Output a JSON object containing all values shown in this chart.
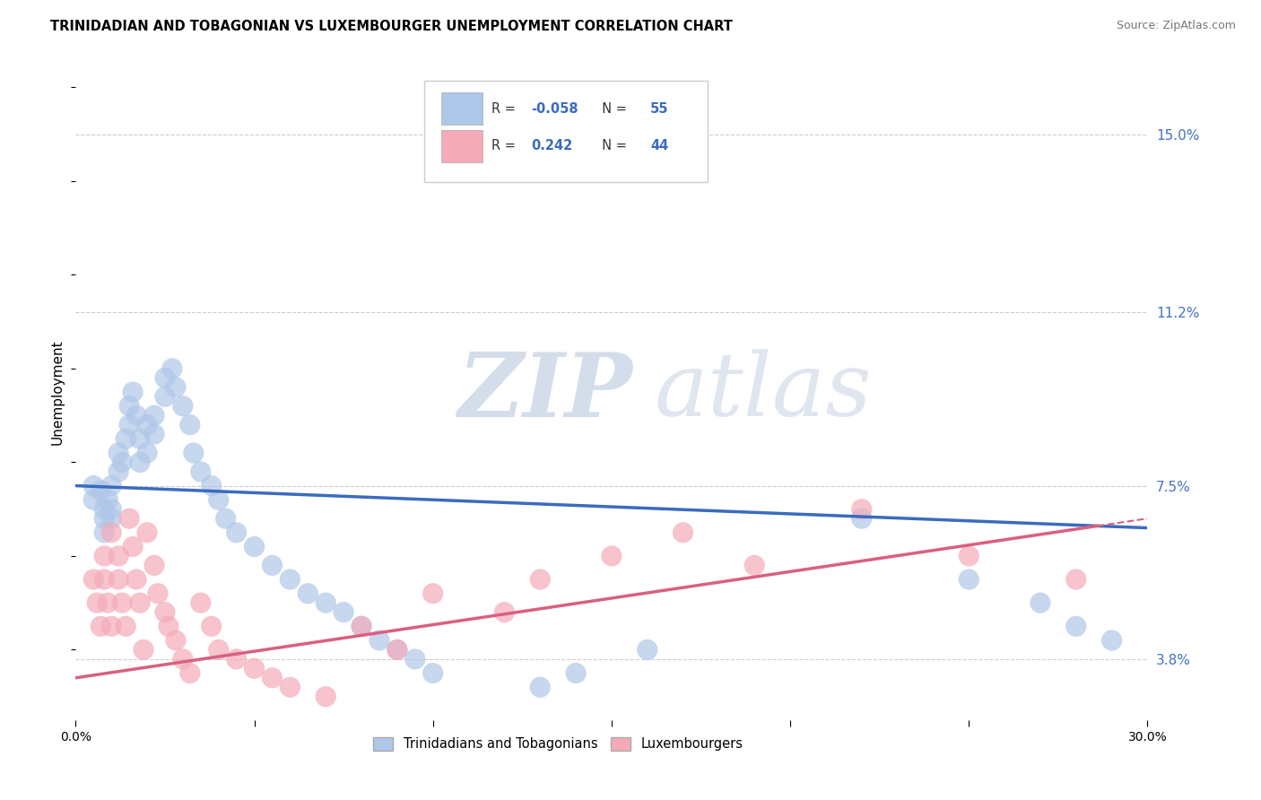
{
  "title": "TRINIDADIAN AND TOBAGONIAN VS LUXEMBOURGER UNEMPLOYMENT CORRELATION CHART",
  "source": "Source: ZipAtlas.com",
  "ylabel": "Unemployment",
  "y_ticks": [
    0.038,
    0.075,
    0.112,
    0.15
  ],
  "y_tick_labels": [
    "3.8%",
    "7.5%",
    "11.2%",
    "15.0%"
  ],
  "xlim": [
    0.0,
    0.3
  ],
  "ylim": [
    0.025,
    0.165
  ],
  "blue_color": "#aec6e8",
  "pink_color": "#f4aab8",
  "blue_line_color": "#3a6bbf",
  "pink_line_color": "#d96080",
  "legend_r_blue": "-0.058",
  "legend_n_blue": "55",
  "legend_r_pink": "0.242",
  "legend_n_pink": "44",
  "background_color": "#ffffff",
  "grid_color": "#cccccc",
  "blue_trend_start_y": 0.075,
  "blue_trend_end_y": 0.066,
  "pink_trend_start_y": 0.034,
  "pink_trend_end_y": 0.068,
  "blue_scatter_x": [
    0.005,
    0.005,
    0.007,
    0.008,
    0.008,
    0.008,
    0.009,
    0.01,
    0.01,
    0.01,
    0.012,
    0.012,
    0.013,
    0.014,
    0.015,
    0.015,
    0.016,
    0.017,
    0.018,
    0.018,
    0.02,
    0.02,
    0.022,
    0.022,
    0.025,
    0.025,
    0.027,
    0.028,
    0.03,
    0.032,
    0.033,
    0.035,
    0.038,
    0.04,
    0.042,
    0.045,
    0.05,
    0.055,
    0.06,
    0.065,
    0.07,
    0.075,
    0.08,
    0.085,
    0.09,
    0.095,
    0.1,
    0.13,
    0.14,
    0.16,
    0.22,
    0.25,
    0.27,
    0.28,
    0.29
  ],
  "blue_scatter_y": [
    0.075,
    0.072,
    0.074,
    0.07,
    0.068,
    0.065,
    0.072,
    0.075,
    0.07,
    0.068,
    0.082,
    0.078,
    0.08,
    0.085,
    0.088,
    0.092,
    0.095,
    0.09,
    0.085,
    0.08,
    0.088,
    0.082,
    0.086,
    0.09,
    0.094,
    0.098,
    0.1,
    0.096,
    0.092,
    0.088,
    0.082,
    0.078,
    0.075,
    0.072,
    0.068,
    0.065,
    0.062,
    0.058,
    0.055,
    0.052,
    0.05,
    0.048,
    0.045,
    0.042,
    0.04,
    0.038,
    0.035,
    0.032,
    0.035,
    0.04,
    0.068,
    0.055,
    0.05,
    0.045,
    0.042
  ],
  "pink_scatter_x": [
    0.005,
    0.006,
    0.007,
    0.008,
    0.008,
    0.009,
    0.01,
    0.01,
    0.012,
    0.012,
    0.013,
    0.014,
    0.015,
    0.016,
    0.017,
    0.018,
    0.019,
    0.02,
    0.022,
    0.023,
    0.025,
    0.026,
    0.028,
    0.03,
    0.032,
    0.035,
    0.038,
    0.04,
    0.045,
    0.05,
    0.055,
    0.06,
    0.07,
    0.08,
    0.09,
    0.1,
    0.12,
    0.13,
    0.15,
    0.17,
    0.19,
    0.22,
    0.25,
    0.28
  ],
  "pink_scatter_y": [
    0.055,
    0.05,
    0.045,
    0.06,
    0.055,
    0.05,
    0.045,
    0.065,
    0.06,
    0.055,
    0.05,
    0.045,
    0.068,
    0.062,
    0.055,
    0.05,
    0.04,
    0.065,
    0.058,
    0.052,
    0.048,
    0.045,
    0.042,
    0.038,
    0.035,
    0.05,
    0.045,
    0.04,
    0.038,
    0.036,
    0.034,
    0.032,
    0.03,
    0.045,
    0.04,
    0.052,
    0.048,
    0.055,
    0.06,
    0.065,
    0.058,
    0.07,
    0.06,
    0.055
  ]
}
